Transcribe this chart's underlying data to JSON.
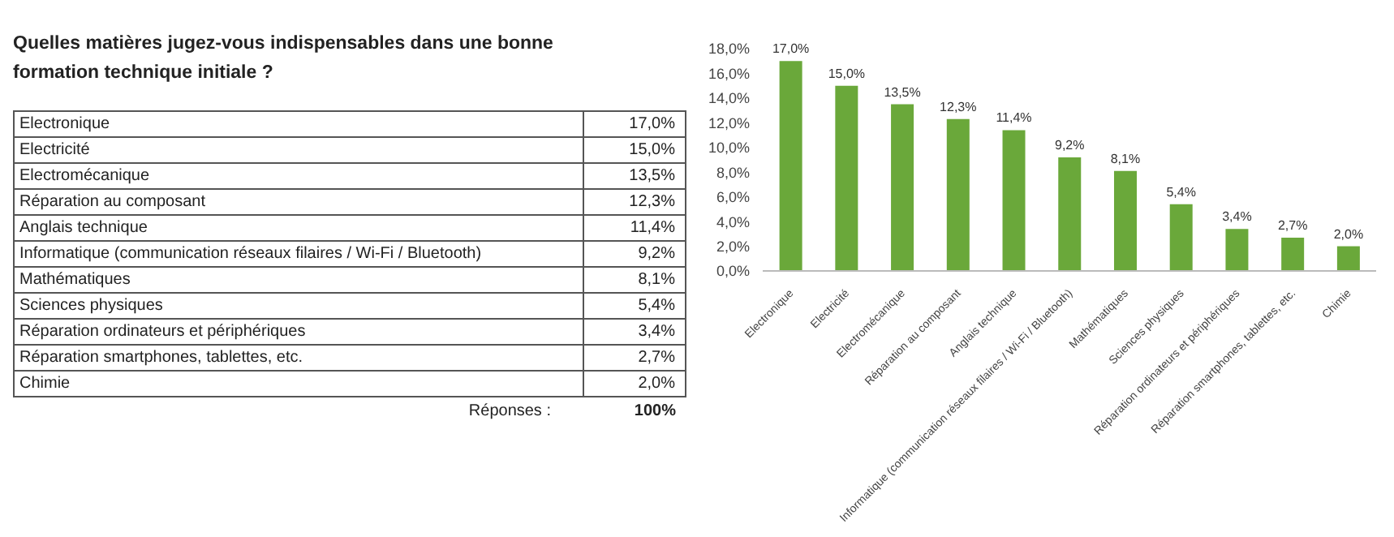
{
  "chart_data": {
    "type": "bar",
    "title": "Quelles matières jugez-vous indispensables dans une bonne formation technique initiale ?",
    "categories": [
      "Electronique",
      "Electricité",
      "Electromécanique",
      "Réparation au composant",
      "Anglais technique",
      "Informatique (communication réseaux filaires / Wi-Fi / Bluetooth)",
      "Mathématiques",
      "Sciences physiques",
      "Réparation ordinateurs et périphériques",
      "Réparation smartphones, tablettes, etc.",
      "Chimie"
    ],
    "values": [
      17.0,
      15.0,
      13.5,
      12.3,
      11.4,
      9.2,
      8.1,
      5.4,
      3.4,
      2.7,
      2.0
    ],
    "value_labels": [
      "17,0%",
      "15,0%",
      "13,5%",
      "12,3%",
      "11,4%",
      "9,2%",
      "8,1%",
      "5,4%",
      "3,4%",
      "2,7%",
      "2,0%"
    ],
    "color": "#6aa83a",
    "ylim": [
      0,
      18
    ],
    "yticks": [
      {
        "value": 0,
        "label": "0,0%"
      },
      {
        "value": 2,
        "label": "2,0%"
      },
      {
        "value": 4,
        "label": "4,0%"
      },
      {
        "value": 6,
        "label": "6,0%"
      },
      {
        "value": 8,
        "label": "8,0%"
      },
      {
        "value": 10,
        "label": "10,0%"
      },
      {
        "value": 12,
        "label": "12,0%"
      },
      {
        "value": 14,
        "label": "14,0%"
      },
      {
        "value": 16,
        "label": "16,0%"
      },
      {
        "value": 18,
        "label": "18,0%"
      }
    ],
    "annotations": [
      "Réponses :",
      "100%"
    ]
  }
}
